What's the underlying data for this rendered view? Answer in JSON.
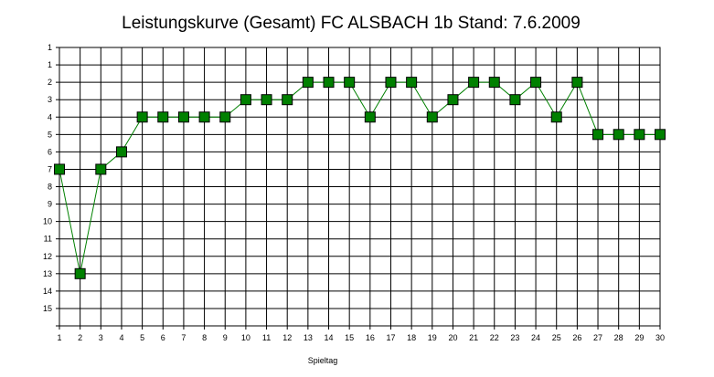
{
  "chart_data": {
    "type": "line",
    "title": "Leistungskurve (Gesamt) FC ALSBACH 1b Stand: 7.6.2009",
    "xlabel": "Spieltag",
    "ylabel": "",
    "x_ticks": [
      "1",
      "2",
      "3",
      "4",
      "5",
      "6",
      "7",
      "8",
      "9",
      "10",
      "11",
      "12",
      "13",
      "14",
      "15",
      "16",
      "17",
      "18",
      "19",
      "20",
      "21",
      "22",
      "23",
      "24",
      "25",
      "26",
      "27",
      "28",
      "29",
      "30"
    ],
    "y_ticks": [
      "1",
      "1",
      "2",
      "3",
      "4",
      "5",
      "6",
      "7",
      "8",
      "9",
      "10",
      "11",
      "12",
      "13",
      "14",
      "15"
    ],
    "y_inverted": true,
    "grid": true,
    "series": [
      {
        "x": [
          1,
          2,
          3,
          4,
          5,
          6,
          7,
          8,
          9,
          10,
          11,
          12,
          13,
          14,
          15,
          16,
          17,
          18,
          19,
          20,
          21,
          22,
          23,
          24,
          25,
          26,
          27,
          28,
          29,
          30
        ],
        "values": [
          7,
          13,
          7,
          6,
          4,
          4,
          4,
          4,
          4,
          3,
          3,
          3,
          2,
          2,
          2,
          4,
          2,
          2,
          4,
          3,
          2,
          2,
          3,
          2,
          4,
          2,
          5,
          5,
          5,
          5
        ],
        "line_color": "#008000",
        "marker_fill": "#008000",
        "marker_stroke": "#000000",
        "marker": "square"
      }
    ]
  }
}
